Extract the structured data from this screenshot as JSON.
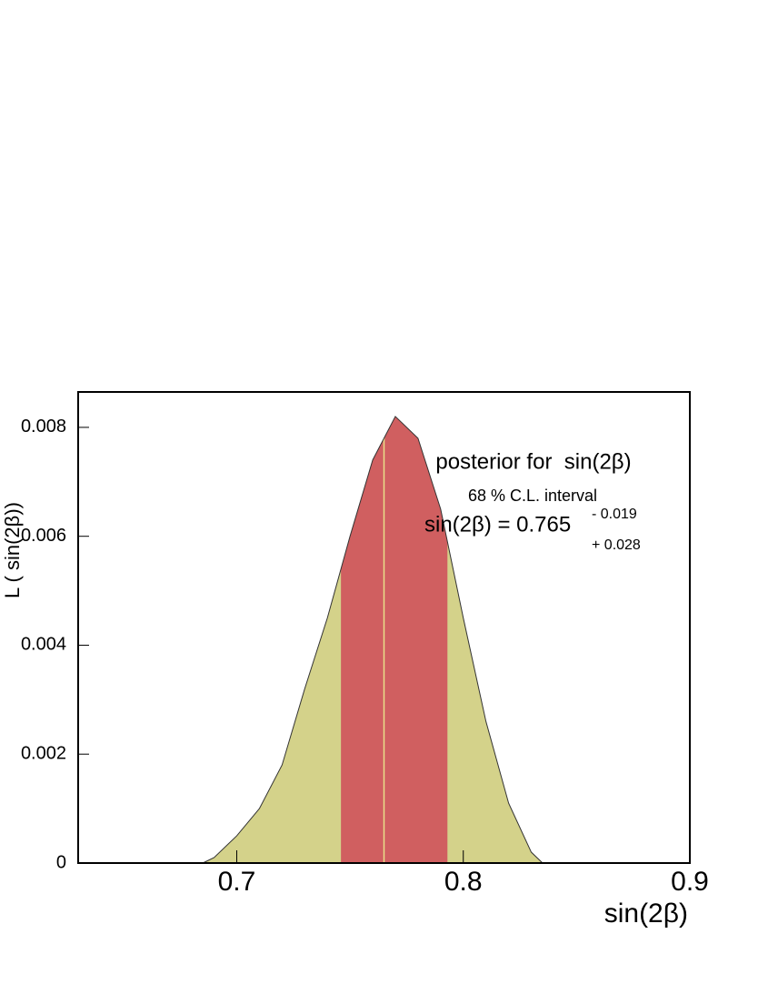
{
  "chart_data": {
    "type": "area",
    "x_label": "sin(2β)",
    "y_label": "L ( sin(2β))",
    "annotation_title": "posterior for  sin(2β)",
    "annotation_subtitle": "68 % C.L. interval",
    "estimate": {
      "label": "sin(2β) = 0.765",
      "value": 0.765,
      "minus": {
        "value": 0.019,
        "label": "- 0.019"
      },
      "plus": {
        "value": 0.028,
        "label": "+ 0.028"
      }
    },
    "x": [
      0.685,
      0.69,
      0.7,
      0.71,
      0.72,
      0.73,
      0.74,
      0.75,
      0.76,
      0.77,
      0.78,
      0.79,
      0.8,
      0.81,
      0.82,
      0.83,
      0.835
    ],
    "values": [
      0,
      0.0001,
      0.0005,
      0.001,
      0.0018,
      0.0032,
      0.0045,
      0.006,
      0.0074,
      0.0082,
      0.0078,
      0.0065,
      0.0045,
      0.0026,
      0.0011,
      0.0002,
      0
    ],
    "color": "#d4d28a",
    "interval_color": "#d05f60",
    "line_color": "#e8e08a",
    "xlim": [
      0.63,
      0.9
    ],
    "xticks": [
      0.7,
      0.8,
      0.9
    ],
    "ylim": [
      0,
      0.00865
    ],
    "yticks": [
      0,
      0.002,
      0.004,
      0.006,
      0.008
    ]
  }
}
